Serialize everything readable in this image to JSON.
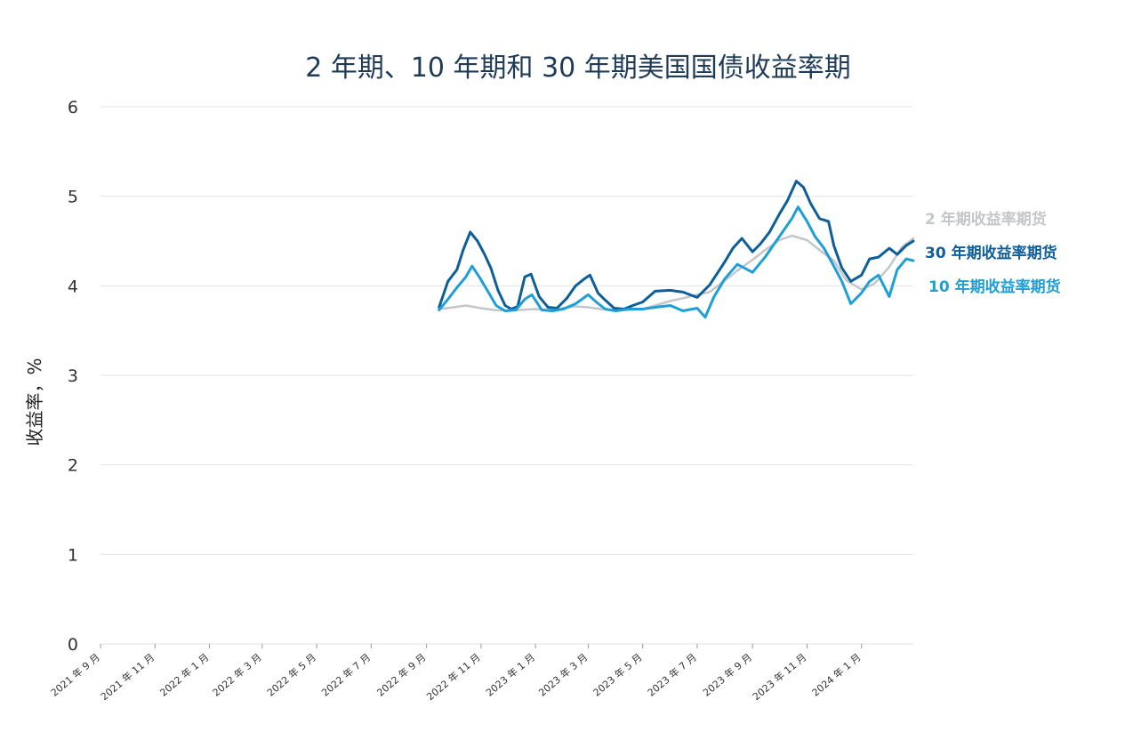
{
  "chart_data": {
    "type": "line",
    "title": "2 年期、10 年期和 30 年期美国国债收益率期",
    "xlabel": "",
    "ylabel": "收益率，%",
    "ylim": [
      0,
      6
    ],
    "yticks": [
      "0",
      "1",
      "2",
      "3",
      "4",
      "5",
      "6"
    ],
    "x_start": "2021-09",
    "x_end": "2024-02",
    "xticks": [
      {
        "date": "2021-09",
        "label": "2021 年 9 月"
      },
      {
        "date": "2021-11",
        "label": "2021 年 11 月"
      },
      {
        "date": "2022-01",
        "label": "2022 年 1 月"
      },
      {
        "date": "2022-03",
        "label": "2022 年 3 月"
      },
      {
        "date": "2022-05",
        "label": "2022 年 5 月"
      },
      {
        "date": "2022-07",
        "label": "2022 年 7 月"
      },
      {
        "date": "2022-09",
        "label": "2022 年 9 月"
      },
      {
        "date": "2022-11",
        "label": "2022 年 11 月"
      },
      {
        "date": "2023-01",
        "label": "2023 年 1 月"
      },
      {
        "date": "2023-03",
        "label": "2023 年 3 月"
      },
      {
        "date": "2023-05",
        "label": "2023 年 5 月"
      },
      {
        "date": "2023-07",
        "label": "2023 年 7 月"
      },
      {
        "date": "2023-09",
        "label": "2023 年 9 月"
      },
      {
        "date": "2023-11",
        "label": "2023 年 11 月"
      },
      {
        "date": "2024-01",
        "label": "2024 年 1 月"
      }
    ],
    "grid": true,
    "legend_position": "right",
    "series": [
      {
        "name": "2 年期收益率期货",
        "color": "#c4c7ca",
        "points": [
          [
            "2022-09-15",
            3.74
          ],
          [
            "2022-10-01",
            3.76
          ],
          [
            "2022-10-15",
            3.78
          ],
          [
            "2022-11-01",
            3.75
          ],
          [
            "2022-11-15",
            3.73
          ],
          [
            "2022-12-01",
            3.72
          ],
          [
            "2022-12-15",
            3.73
          ],
          [
            "2023-01-01",
            3.74
          ],
          [
            "2023-01-15",
            3.73
          ],
          [
            "2023-02-01",
            3.75
          ],
          [
            "2023-02-15",
            3.77
          ],
          [
            "2023-03-01",
            3.76
          ],
          [
            "2023-03-15",
            3.74
          ],
          [
            "2023-04-01",
            3.73
          ],
          [
            "2023-04-15",
            3.73
          ],
          [
            "2023-05-01",
            3.74
          ],
          [
            "2023-05-15",
            3.78
          ],
          [
            "2023-06-01",
            3.83
          ],
          [
            "2023-06-15",
            3.86
          ],
          [
            "2023-07-01",
            3.9
          ],
          [
            "2023-07-15",
            3.93
          ],
          [
            "2023-08-01",
            4.06
          ],
          [
            "2023-08-15",
            4.17
          ],
          [
            "2023-09-01",
            4.29
          ],
          [
            "2023-09-15",
            4.4
          ],
          [
            "2023-10-01",
            4.51
          ],
          [
            "2023-10-15",
            4.56
          ],
          [
            "2023-11-01",
            4.51
          ],
          [
            "2023-11-15",
            4.4
          ],
          [
            "2023-12-01",
            4.28
          ],
          [
            "2023-12-15",
            4.06
          ],
          [
            "2024-01-01",
            3.96
          ],
          [
            "2024-01-15",
            4.02
          ],
          [
            "2024-02-01",
            4.21
          ],
          [
            "2024-02-15",
            4.43
          ],
          [
            "2024-02-28",
            4.53
          ]
        ]
      },
      {
        "name": "30 年期收益率期货",
        "color": "#0e5e9a",
        "points": [
          [
            "2022-09-15",
            3.76
          ],
          [
            "2022-09-25",
            4.05
          ],
          [
            "2022-10-05",
            4.18
          ],
          [
            "2022-10-12",
            4.4
          ],
          [
            "2022-10-20",
            4.6
          ],
          [
            "2022-10-28",
            4.5
          ],
          [
            "2022-11-05",
            4.35
          ],
          [
            "2022-11-12",
            4.2
          ],
          [
            "2022-11-20",
            3.95
          ],
          [
            "2022-11-28",
            3.78
          ],
          [
            "2022-12-05",
            3.74
          ],
          [
            "2022-12-12",
            3.77
          ],
          [
            "2022-12-20",
            4.1
          ],
          [
            "2022-12-27",
            4.13
          ],
          [
            "2023-01-05",
            3.88
          ],
          [
            "2023-01-15",
            3.76
          ],
          [
            "2023-01-25",
            3.75
          ],
          [
            "2023-02-05",
            3.86
          ],
          [
            "2023-02-15",
            4.0
          ],
          [
            "2023-02-25",
            4.08
          ],
          [
            "2023-03-03",
            4.12
          ],
          [
            "2023-03-12",
            3.92
          ],
          [
            "2023-03-20",
            3.84
          ],
          [
            "2023-03-30",
            3.75
          ],
          [
            "2023-04-10",
            3.74
          ],
          [
            "2023-04-20",
            3.78
          ],
          [
            "2023-05-01",
            3.82
          ],
          [
            "2023-05-15",
            3.94
          ],
          [
            "2023-06-01",
            3.95
          ],
          [
            "2023-06-15",
            3.93
          ],
          [
            "2023-07-01",
            3.87
          ],
          [
            "2023-07-15",
            4.01
          ],
          [
            "2023-08-01",
            4.27
          ],
          [
            "2023-08-10",
            4.42
          ],
          [
            "2023-08-20",
            4.53
          ],
          [
            "2023-09-01",
            4.38
          ],
          [
            "2023-09-10",
            4.47
          ],
          [
            "2023-09-20",
            4.6
          ],
          [
            "2023-10-01",
            4.8
          ],
          [
            "2023-10-10",
            4.95
          ],
          [
            "2023-10-20",
            5.17
          ],
          [
            "2023-10-28",
            5.1
          ],
          [
            "2023-11-05",
            4.92
          ],
          [
            "2023-11-15",
            4.75
          ],
          [
            "2023-11-25",
            4.72
          ],
          [
            "2023-12-01",
            4.45
          ],
          [
            "2023-12-10",
            4.2
          ],
          [
            "2023-12-20",
            4.05
          ],
          [
            "2024-01-01",
            4.12
          ],
          [
            "2024-01-10",
            4.3
          ],
          [
            "2024-01-20",
            4.32
          ],
          [
            "2024-02-01",
            4.42
          ],
          [
            "2024-02-10",
            4.35
          ],
          [
            "2024-02-20",
            4.45
          ],
          [
            "2024-02-28",
            4.5
          ]
        ]
      },
      {
        "name": "10 年期收益率期货",
        "color": "#1f9fd6",
        "points": [
          [
            "2022-09-15",
            3.73
          ],
          [
            "2022-09-25",
            3.85
          ],
          [
            "2022-10-05",
            3.98
          ],
          [
            "2022-10-15",
            4.1
          ],
          [
            "2022-10-22",
            4.22
          ],
          [
            "2022-10-30",
            4.1
          ],
          [
            "2022-11-08",
            3.95
          ],
          [
            "2022-11-18",
            3.78
          ],
          [
            "2022-11-28",
            3.72
          ],
          [
            "2022-12-10",
            3.73
          ],
          [
            "2022-12-20",
            3.85
          ],
          [
            "2022-12-28",
            3.9
          ],
          [
            "2023-01-08",
            3.73
          ],
          [
            "2023-01-20",
            3.72
          ],
          [
            "2023-02-01",
            3.74
          ],
          [
            "2023-02-15",
            3.8
          ],
          [
            "2023-03-01",
            3.9
          ],
          [
            "2023-03-10",
            3.82
          ],
          [
            "2023-03-20",
            3.74
          ],
          [
            "2023-04-01",
            3.72
          ],
          [
            "2023-04-15",
            3.74
          ],
          [
            "2023-05-01",
            3.74
          ],
          [
            "2023-05-15",
            3.76
          ],
          [
            "2023-06-01",
            3.78
          ],
          [
            "2023-06-15",
            3.72
          ],
          [
            "2023-07-01",
            3.75
          ],
          [
            "2023-07-10",
            3.65
          ],
          [
            "2023-07-20",
            3.88
          ],
          [
            "2023-08-01",
            4.08
          ],
          [
            "2023-08-15",
            4.24
          ],
          [
            "2023-09-01",
            4.15
          ],
          [
            "2023-09-15",
            4.32
          ],
          [
            "2023-10-01",
            4.55
          ],
          [
            "2023-10-15",
            4.75
          ],
          [
            "2023-10-22",
            4.88
          ],
          [
            "2023-11-01",
            4.72
          ],
          [
            "2023-11-10",
            4.55
          ],
          [
            "2023-11-20",
            4.42
          ],
          [
            "2023-12-01",
            4.22
          ],
          [
            "2023-12-10",
            4.05
          ],
          [
            "2023-12-20",
            3.8
          ],
          [
            "2024-01-01",
            3.92
          ],
          [
            "2024-01-10",
            4.05
          ],
          [
            "2024-01-20",
            4.12
          ],
          [
            "2024-02-01",
            3.88
          ],
          [
            "2024-02-10",
            4.18
          ],
          [
            "2024-02-20",
            4.3
          ],
          [
            "2024-02-28",
            4.28
          ]
        ]
      }
    ]
  }
}
